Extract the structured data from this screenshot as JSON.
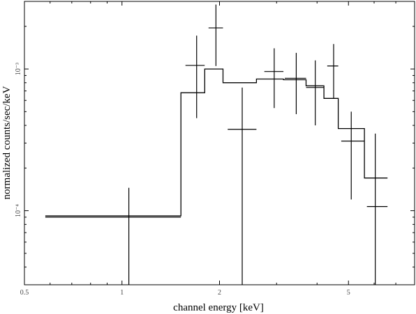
{
  "chart_data": {
    "type": "line",
    "title": "",
    "xlabel": "channel energy [keV]",
    "ylabel": "normalized counts/sec/keV",
    "x_scale": "log",
    "y_scale": "log",
    "xlim": [
      0.5,
      8.0
    ],
    "ylim": [
      3e-05,
      0.003
    ],
    "x_ticks": [
      {
        "value": 0.5,
        "label": "0.5"
      },
      {
        "value": 1,
        "label": "1"
      },
      {
        "value": 2,
        "label": "2"
      },
      {
        "value": 5,
        "label": "5"
      }
    ],
    "y_ticks": [
      {
        "value": 0.0001,
        "label": "10⁻⁴"
      },
      {
        "value": 0.001,
        "label": "10⁻³"
      }
    ],
    "grid": false,
    "series": [
      {
        "kind": "data_with_errors",
        "points": [
          {
            "x": 1.05,
            "xerr": [
              0.58,
              1.52
            ],
            "y": 9e-05,
            "yerr": [
              1e-05,
              0.000145
            ]
          },
          {
            "x": 1.7,
            "xerr": [
              1.57,
              1.8
            ],
            "y": 0.00106,
            "yerr": [
              0.00045,
              0.00172
            ]
          },
          {
            "x": 1.95,
            "xerr": [
              1.85,
              2.05
            ],
            "y": 0.00195,
            "yerr": [
              0.00105,
              0.00285
            ]
          },
          {
            "x": 2.35,
            "xerr": [
              2.12,
              2.6
            ],
            "y": 0.000375,
            "yerr": [
              1e-05,
              0.00074
            ]
          },
          {
            "x": 2.95,
            "xerr": [
              2.75,
              3.15
            ],
            "y": 0.00096,
            "yerr": [
              0.00053,
              0.0014
            ]
          },
          {
            "x": 3.45,
            "xerr": [
              3.18,
              3.7
            ],
            "y": 0.00086,
            "yerr": [
              0.00048,
              0.0013
            ]
          },
          {
            "x": 3.95,
            "xerr": [
              3.7,
              4.2
            ],
            "y": 0.00074,
            "yerr": [
              0.0004,
              0.00115
            ]
          },
          {
            "x": 4.5,
            "xerr": [
              4.3,
              4.65
            ],
            "y": 0.00105,
            "yerr": [
              0.00062,
              0.0015
            ]
          },
          {
            "x": 5.1,
            "xerr": [
              4.75,
              5.6
            ],
            "y": 0.00031,
            "yerr": [
              0.00012,
              0.0005
            ]
          },
          {
            "x": 6.05,
            "xerr": [
              5.7,
              6.6
            ],
            "y": 0.000107,
            "yerr": [
              1e-05,
              0.00035
            ]
          }
        ]
      },
      {
        "kind": "model_step",
        "steps": [
          {
            "x0": 0.58,
            "x1": 1.52,
            "y": 9.2e-05
          },
          {
            "x0": 1.52,
            "x1": 1.8,
            "y": 0.00068
          },
          {
            "x0": 1.8,
            "x1": 2.05,
            "y": 0.001
          },
          {
            "x0": 2.05,
            "x1": 2.6,
            "y": 0.0008
          },
          {
            "x0": 2.6,
            "x1": 3.15,
            "y": 0.00085
          },
          {
            "x0": 3.15,
            "x1": 3.7,
            "y": 0.00084
          },
          {
            "x0": 3.7,
            "x1": 4.2,
            "y": 0.00076
          },
          {
            "x0": 4.2,
            "x1": 4.65,
            "y": 0.00062
          },
          {
            "x0": 4.65,
            "x1": 5.6,
            "y": 0.00038
          },
          {
            "x0": 5.6,
            "x1": 6.6,
            "y": 0.00017
          }
        ]
      }
    ]
  }
}
